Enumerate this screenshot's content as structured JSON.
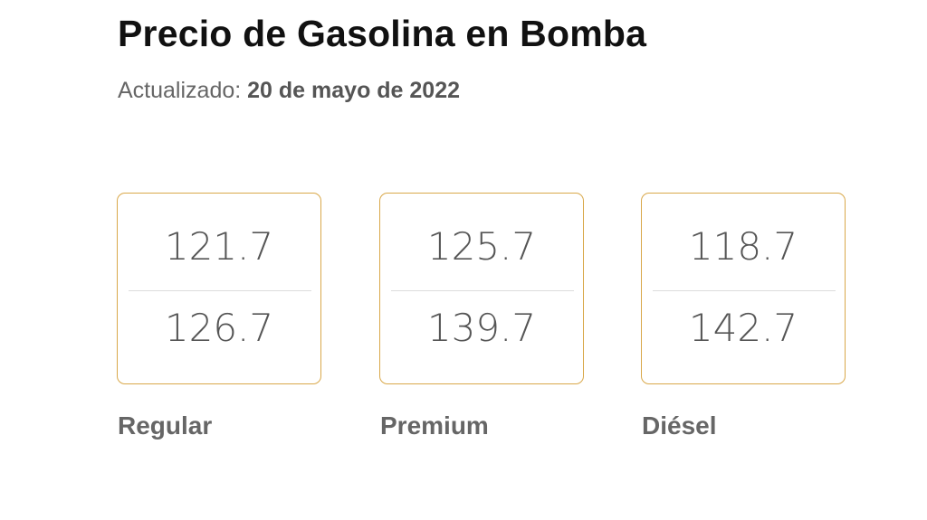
{
  "header": {
    "title": "Precio de Gasolina en Bomba",
    "updated_label": "Actualizado:",
    "updated_date": "20 de mayo de 2022"
  },
  "colors": {
    "card_border": "#d9a84a"
  },
  "fuels": [
    {
      "name": "Regular",
      "price_top": "121.7",
      "price_bottom": "126.7"
    },
    {
      "name": "Premium",
      "price_top": "125.7",
      "price_bottom": "139.7"
    },
    {
      "name": "Diésel",
      "price_top": "118.7",
      "price_bottom": "142.7"
    }
  ]
}
